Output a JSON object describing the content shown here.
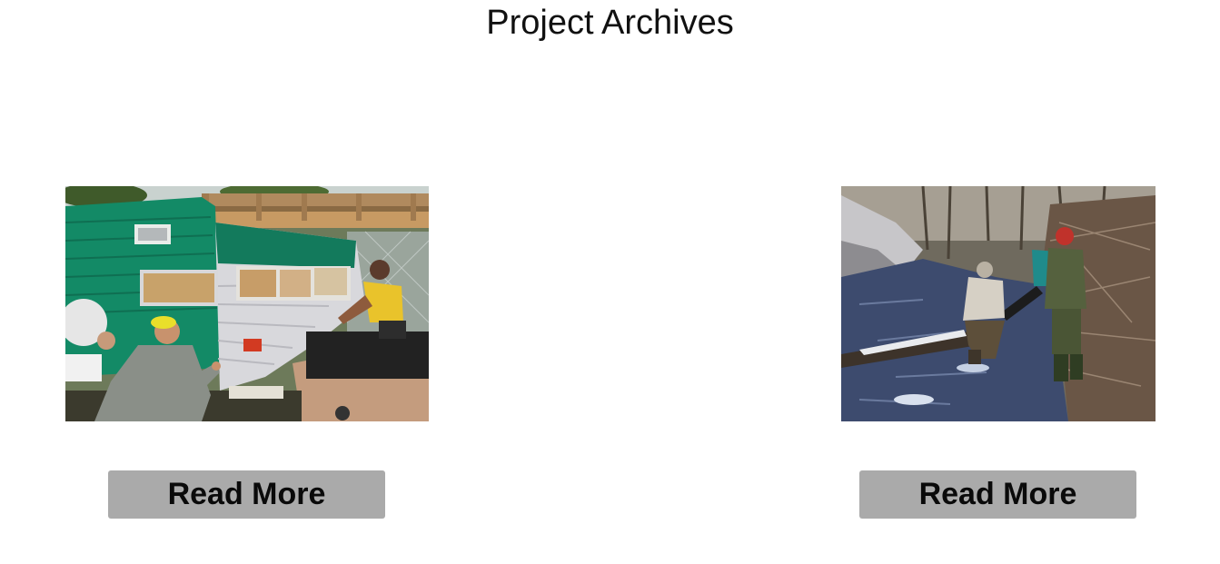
{
  "page": {
    "title": "Project Archives"
  },
  "projects": [
    {
      "photo_icon": "photo-camper-painting",
      "button_label": "Read More"
    },
    {
      "photo_icon": "photo-stream-restoration",
      "button_label": "Read More"
    }
  ],
  "colors": {
    "button_bg": "#aaaaaa",
    "button_text": "#0a0a0a",
    "title_text": "#111111"
  }
}
